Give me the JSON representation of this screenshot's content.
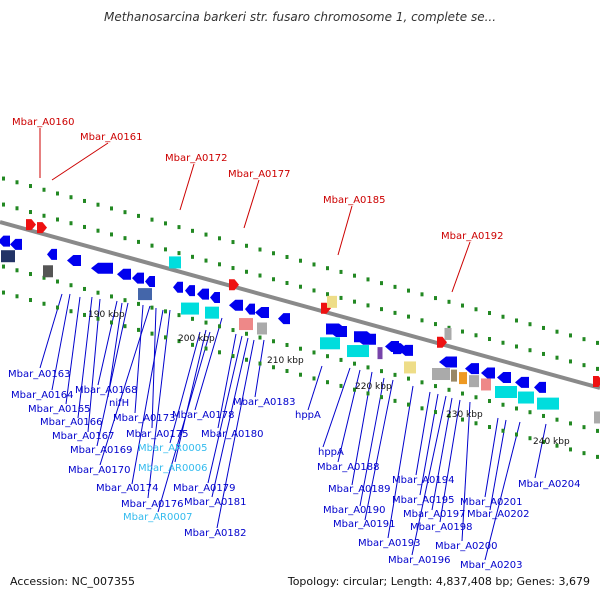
{
  "header": {
    "title": "Methanosarcina barkeri str. fusaro chromosome 1, complete se..."
  },
  "footer": {
    "accession": "Accession: NC_007355",
    "summary": "Topology: circular; Length: 4,837,408 bp; Genes: 3,679"
  },
  "colors": {
    "backbone": "#8a8a8a",
    "top_label": "#cc0000",
    "bottom_label": "#0000cc",
    "rna_label": "#33bbee",
    "tick": "#228822",
    "gene_blue": "#0000ee",
    "gene_cyan": "#00dddd",
    "gene_red": "#ee1111",
    "gene_yellow": "#eedd88",
    "gene_pink": "#ee8888",
    "gene_gray": "#aaaaaa",
    "gene_orange": "#ee9922",
    "gene_darkblue": "#223366"
  },
  "scale_labels": [
    {
      "text": "190 kbp"
    },
    {
      "text": "200 kbp"
    },
    {
      "text": "210 kbp"
    },
    {
      "text": "220 kbp"
    },
    {
      "text": "230 kbp"
    },
    {
      "text": "240 kbp"
    }
  ],
  "top_labels": [
    {
      "text": "Mbar_A0160"
    },
    {
      "text": "Mbar_A0161"
    },
    {
      "text": "Mbar_A0172"
    },
    {
      "text": "Mbar_A0177"
    },
    {
      "text": "Mbar_A0185"
    },
    {
      "text": "Mbar_A0192"
    }
  ],
  "bottom_labels": [
    {
      "text": "Mbar_A0163",
      "kind": "gene"
    },
    {
      "text": "Mbar_A0164",
      "kind": "gene"
    },
    {
      "text": "Mbar_A0165",
      "kind": "gene"
    },
    {
      "text": "Mbar_A0166",
      "kind": "gene"
    },
    {
      "text": "Mbar_A0167",
      "kind": "gene"
    },
    {
      "text": "Mbar_A0168",
      "kind": "gene"
    },
    {
      "text": "nifH",
      "kind": "gene"
    },
    {
      "text": "Mbar_A0169",
      "kind": "gene"
    },
    {
      "text": "Mbar_A0173",
      "kind": "gene"
    },
    {
      "text": "Mbar_A0170",
      "kind": "gene"
    },
    {
      "text": "Mbar_A0175",
      "kind": "gene"
    },
    {
      "text": "Mbar_AR0005",
      "kind": "rna"
    },
    {
      "text": "Mbar_AR0006",
      "kind": "rna"
    },
    {
      "text": "Mbar_A0174",
      "kind": "gene"
    },
    {
      "text": "Mbar_A0176",
      "kind": "gene"
    },
    {
      "text": "Mbar_AR0007",
      "kind": "rna"
    },
    {
      "text": "Mbar_A0178",
      "kind": "gene"
    },
    {
      "text": "Mbar_A0180",
      "kind": "gene"
    },
    {
      "text": "Mbar_A0179",
      "kind": "gene"
    },
    {
      "text": "Mbar_A0181",
      "kind": "gene"
    },
    {
      "text": "Mbar_A0182",
      "kind": "gene"
    },
    {
      "text": "Mbar_A0183",
      "kind": "gene"
    },
    {
      "text": "hppA",
      "kind": "gene"
    },
    {
      "text": "hppA",
      "kind": "gene"
    },
    {
      "text": "Mbar_A0188",
      "kind": "gene"
    },
    {
      "text": "Mbar_A0189",
      "kind": "gene"
    },
    {
      "text": "Mbar_A0190",
      "kind": "gene"
    },
    {
      "text": "Mbar_A0191",
      "kind": "gene"
    },
    {
      "text": "Mbar_A0193",
      "kind": "gene"
    },
    {
      "text": "Mbar_A0194",
      "kind": "gene"
    },
    {
      "text": "Mbar_A0195",
      "kind": "gene"
    },
    {
      "text": "Mbar_A0196",
      "kind": "gene"
    },
    {
      "text": "Mbar_A0197",
      "kind": "gene"
    },
    {
      "text": "Mbar_A0198",
      "kind": "gene"
    },
    {
      "text": "Mbar_A0200",
      "kind": "gene"
    },
    {
      "text": "Mbar_A0201",
      "kind": "gene"
    },
    {
      "text": "Mbar_A0202",
      "kind": "gene"
    },
    {
      "text": "Mbar_A0203",
      "kind": "gene"
    },
    {
      "text": "Mbar_A0204",
      "kind": "gene"
    }
  ]
}
